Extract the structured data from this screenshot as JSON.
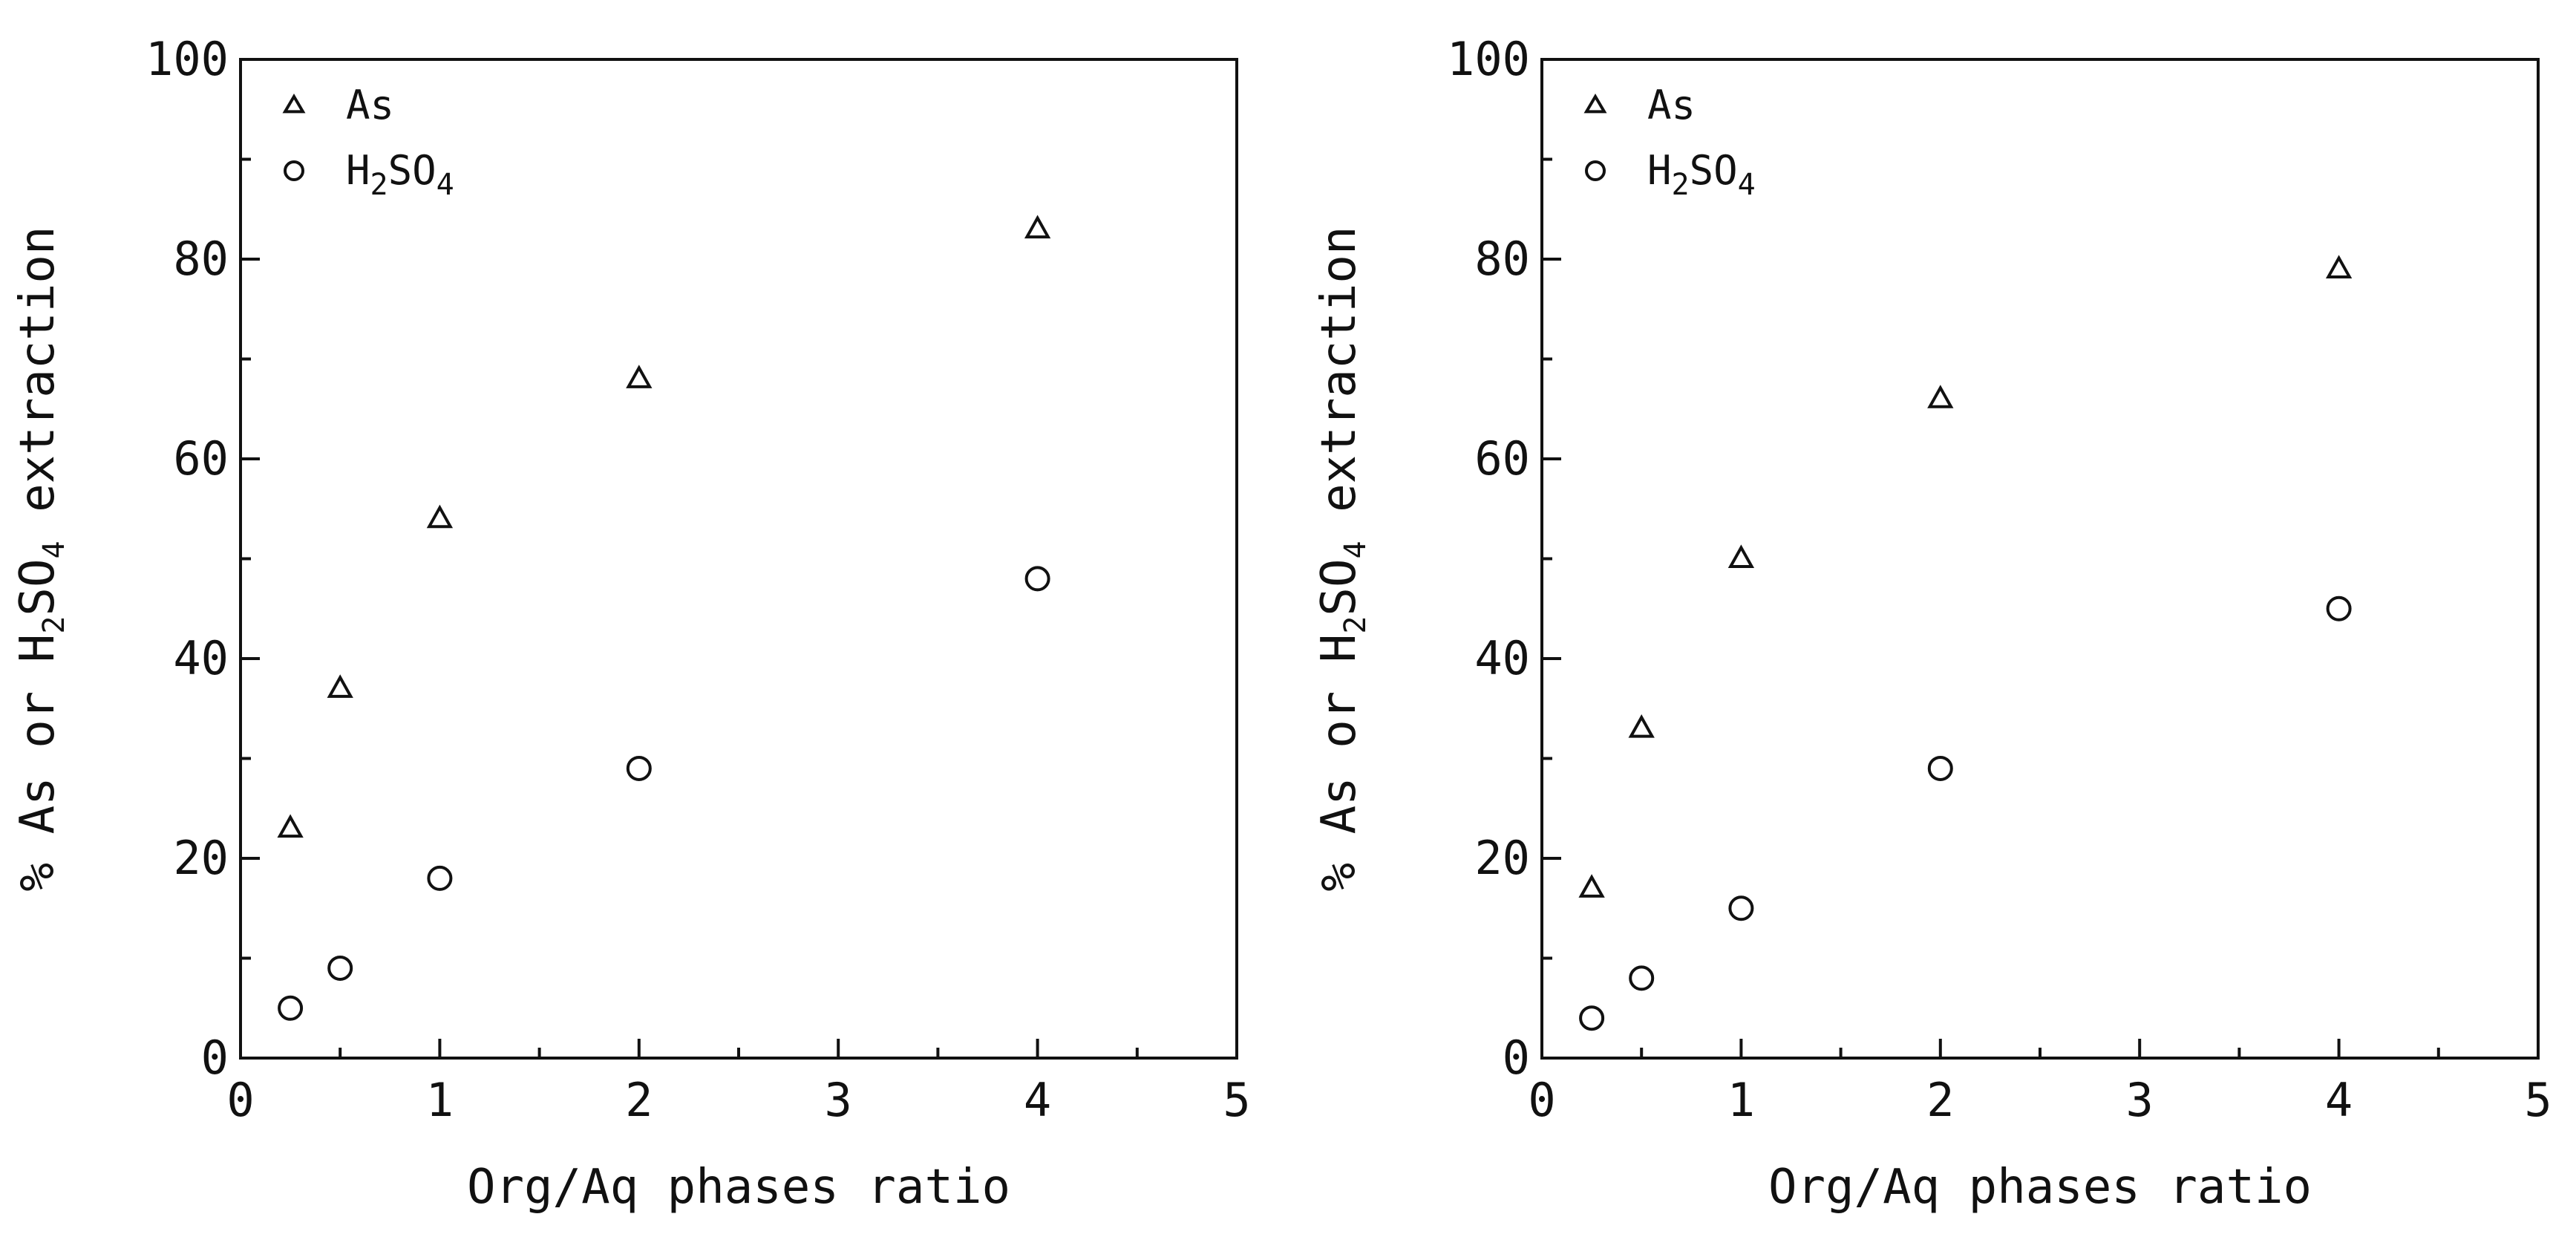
{
  "chart_data": [
    {
      "type": "scatter",
      "xlabel": "Org/Aq phases ratio",
      "ylabel": "% As or H2SO4 extraction",
      "ylabel_parts": [
        "% As or H",
        "2",
        "SO",
        "4",
        " extraction"
      ],
      "xlim": [
        0,
        5
      ],
      "ylim": [
        0,
        100
      ],
      "x_ticks": [
        "0",
        "1",
        "2",
        "3",
        "4",
        "5"
      ],
      "y_ticks": [
        "0",
        "20",
        "40",
        "60",
        "80",
        "100"
      ],
      "grid": false,
      "legend_position": "top-left",
      "series": [
        {
          "name": "As",
          "legend_parts": [
            "As"
          ],
          "marker": "triangle",
          "points": [
            {
              "x": 0.25,
              "y": 23
            },
            {
              "x": 0.5,
              "y": 37
            },
            {
              "x": 1,
              "y": 54
            },
            {
              "x": 2,
              "y": 68
            },
            {
              "x": 4,
              "y": 83
            }
          ]
        },
        {
          "name": "H2SO4",
          "legend_parts": [
            "H",
            "2",
            "SO",
            "4"
          ],
          "marker": "circle",
          "points": [
            {
              "x": 0.25,
              "y": 5
            },
            {
              "x": 0.5,
              "y": 9
            },
            {
              "x": 1,
              "y": 18
            },
            {
              "x": 2,
              "y": 29
            },
            {
              "x": 4,
              "y": 48
            }
          ]
        }
      ]
    },
    {
      "type": "scatter",
      "xlabel": "Org/Aq phases ratio",
      "ylabel": "% As or H2SO4 extraction",
      "ylabel_parts": [
        "% As or H",
        "2",
        "SO",
        "4",
        " extraction"
      ],
      "xlim": [
        0,
        5
      ],
      "ylim": [
        0,
        100
      ],
      "x_ticks": [
        "0",
        "1",
        "2",
        "3",
        "4",
        "5"
      ],
      "y_ticks": [
        "0",
        "20",
        "40",
        "60",
        "80",
        "100"
      ],
      "grid": false,
      "legend_position": "top-left",
      "series": [
        {
          "name": "As",
          "legend_parts": [
            "As"
          ],
          "marker": "triangle",
          "points": [
            {
              "x": 0.25,
              "y": 17
            },
            {
              "x": 0.5,
              "y": 33
            },
            {
              "x": 1,
              "y": 50
            },
            {
              "x": 2,
              "y": 66
            },
            {
              "x": 4,
              "y": 79
            }
          ]
        },
        {
          "name": "H2SO4",
          "legend_parts": [
            "H",
            "2",
            "SO",
            "4"
          ],
          "marker": "circle",
          "points": [
            {
              "x": 0.25,
              "y": 4
            },
            {
              "x": 0.5,
              "y": 8
            },
            {
              "x": 1,
              "y": 15
            },
            {
              "x": 2,
              "y": 29
            },
            {
              "x": 4,
              "y": 45
            }
          ]
        }
      ]
    }
  ]
}
